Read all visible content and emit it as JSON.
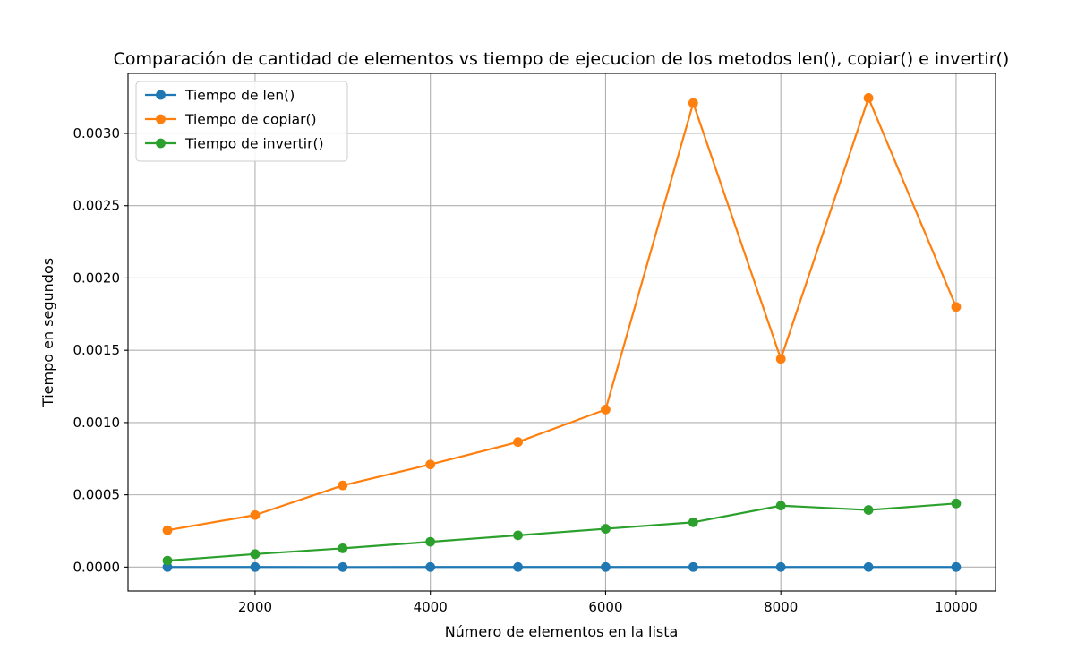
{
  "chart_data": {
    "type": "line",
    "title": "Comparación de cantidad de elementos vs tiempo de ejecucion de los metodos len(), copiar() e invertir()",
    "xlabel": "Número de elementos en la lista",
    "ylabel": "Tiempo en segundos",
    "xlim": [
      550,
      10450
    ],
    "ylim": [
      -0.000165,
      0.003415
    ],
    "x_ticks": [
      2000,
      4000,
      6000,
      8000,
      10000
    ],
    "x_tick_labels": [
      "2000",
      "4000",
      "6000",
      "8000",
      "10000"
    ],
    "y_ticks": [
      0,
      0.0005,
      0.001,
      0.0015,
      0.002,
      0.0025,
      0.003
    ],
    "y_tick_labels": [
      "0.0000",
      "0.0005",
      "0.0010",
      "0.0015",
      "0.0020",
      "0.0025",
      "0.0030"
    ],
    "grid": true,
    "legend_position": "upper-left",
    "x": [
      1000,
      2000,
      3000,
      4000,
      5000,
      6000,
      7000,
      8000,
      9000,
      10000
    ],
    "series": [
      {
        "name": "Tiempo de len()",
        "color": "#1f77b4",
        "values": [
          5e-07,
          5e-07,
          4e-07,
          5e-07,
          5e-07,
          5e-07,
          5e-07,
          5e-07,
          5e-07,
          5e-07
        ]
      },
      {
        "name": "Tiempo de copiar()",
        "color": "#ff7f0e",
        "values": [
          0.000255,
          0.00036,
          0.000565,
          0.00071,
          0.000865,
          0.00109,
          0.00321,
          0.00144,
          0.003245,
          0.0018
        ]
      },
      {
        "name": "Tiempo de invertir()",
        "color": "#2ca02c",
        "values": [
          4.5e-05,
          9e-05,
          0.00013,
          0.000175,
          0.00022,
          0.000265,
          0.00031,
          0.000425,
          0.000395,
          0.00044
        ]
      }
    ]
  }
}
